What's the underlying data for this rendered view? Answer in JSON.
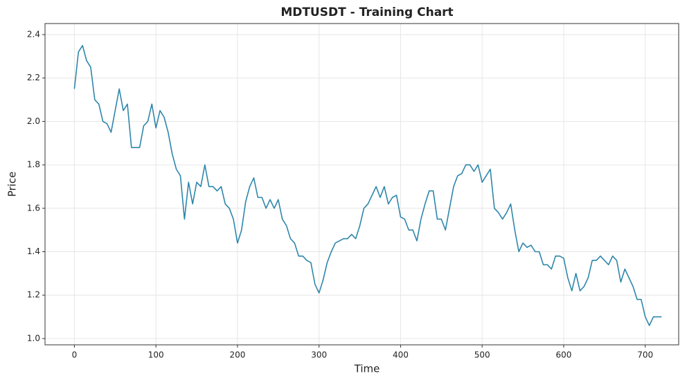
{
  "chart_data": {
    "type": "line",
    "title": "MDTUSDT - Training Chart",
    "x_label": "Time",
    "y_label": "Price",
    "x": [
      0,
      5,
      10,
      15,
      20,
      25,
      30,
      35,
      40,
      45,
      50,
      55,
      60,
      65,
      70,
      75,
      80,
      85,
      90,
      95,
      100,
      105,
      110,
      115,
      120,
      125,
      130,
      135,
      140,
      145,
      150,
      155,
      160,
      165,
      170,
      175,
      180,
      185,
      190,
      195,
      200,
      205,
      210,
      215,
      220,
      225,
      230,
      235,
      240,
      245,
      250,
      255,
      260,
      265,
      270,
      275,
      280,
      285,
      290,
      295,
      300,
      305,
      310,
      315,
      320,
      325,
      330,
      335,
      340,
      345,
      350,
      355,
      360,
      365,
      370,
      375,
      380,
      385,
      390,
      395,
      400,
      405,
      410,
      415,
      420,
      425,
      430,
      435,
      440,
      445,
      450,
      455,
      460,
      465,
      470,
      475,
      480,
      485,
      490,
      495,
      500,
      505,
      510,
      515,
      520,
      525,
      530,
      535,
      540,
      545,
      550,
      555,
      560,
      565,
      570,
      575,
      580,
      585,
      590,
      595,
      600,
      605,
      610,
      615,
      620,
      625,
      630,
      635,
      640,
      645,
      650,
      655,
      660,
      665,
      670,
      675,
      680,
      685,
      690,
      695,
      700,
      705,
      710,
      715,
      720
    ],
    "series": [
      {
        "color": "#2e86ab",
        "values": [
          2.15,
          2.32,
          2.35,
          2.28,
          2.25,
          2.1,
          2.08,
          2.0,
          1.99,
          1.95,
          2.05,
          2.15,
          2.05,
          2.08,
          1.88,
          1.88,
          1.88,
          1.98,
          2.0,
          2.08,
          1.97,
          2.05,
          2.02,
          1.95,
          1.85,
          1.78,
          1.75,
          1.55,
          1.72,
          1.62,
          1.72,
          1.7,
          1.8,
          1.7,
          1.7,
          1.68,
          1.7,
          1.62,
          1.6,
          1.55,
          1.44,
          1.5,
          1.63,
          1.7,
          1.74,
          1.65,
          1.65,
          1.6,
          1.64,
          1.6,
          1.64,
          1.55,
          1.52,
          1.46,
          1.44,
          1.38,
          1.38,
          1.36,
          1.35,
          1.25,
          1.21,
          1.27,
          1.35,
          1.4,
          1.44,
          1.45,
          1.46,
          1.46,
          1.48,
          1.46,
          1.52,
          1.6,
          1.62,
          1.66,
          1.7,
          1.65,
          1.7,
          1.62,
          1.65,
          1.66,
          1.56,
          1.55,
          1.5,
          1.5,
          1.45,
          1.55,
          1.62,
          1.68,
          1.68,
          1.55,
          1.55,
          1.5,
          1.6,
          1.7,
          1.75,
          1.76,
          1.8,
          1.8,
          1.77,
          1.8,
          1.72,
          1.75,
          1.78,
          1.6,
          1.58,
          1.55,
          1.58,
          1.62,
          1.5,
          1.4,
          1.44,
          1.42,
          1.43,
          1.4,
          1.4,
          1.34,
          1.34,
          1.32,
          1.38,
          1.38,
          1.37,
          1.28,
          1.22,
          1.3,
          1.22,
          1.24,
          1.28,
          1.36,
          1.36,
          1.38,
          1.36,
          1.34,
          1.38,
          1.36,
          1.26,
          1.32,
          1.28,
          1.24,
          1.18,
          1.18,
          1.1,
          1.06,
          1.1,
          1.1,
          1.1
        ]
      }
    ],
    "xlim": [
      -36,
      741
    ],
    "xticks": [
      0,
      100,
      200,
      300,
      400,
      500,
      600,
      700
    ],
    "ylim": [
      0.971,
      2.451
    ],
    "yticks": [
      {
        "value": 1.0,
        "label": "1.0"
      },
      1.2,
      1.4,
      1.6,
      1.8,
      {
        "value": 2.0,
        "label": "2.0"
      },
      2.2,
      2.4
    ],
    "grid": true
  }
}
